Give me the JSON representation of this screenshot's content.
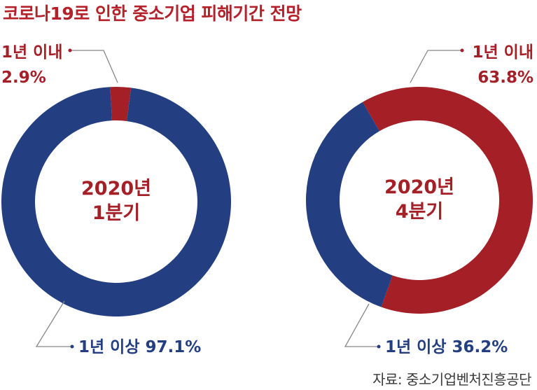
{
  "title": "코로나19로 인한 중소기업 피해기간 전망",
  "source": "자료: 중소기업벤처진흥공단",
  "colors": {
    "under_1yr": "#a51f27",
    "over_1yr": "#233f82",
    "leader": "#888888"
  },
  "chart_data": [
    {
      "type": "pie",
      "center_label": [
        "2020년",
        "1분기"
      ],
      "slices": [
        {
          "label": "1년 이내",
          "value": 2.9,
          "value_label": "2.9%",
          "color": "#a51f27"
        },
        {
          "label": "1년 이상",
          "value": 97.1,
          "value_label": "97.1%",
          "color": "#233f82"
        }
      ]
    },
    {
      "type": "pie",
      "center_label": [
        "2020년",
        "4분기"
      ],
      "slices": [
        {
          "label": "1년 이내",
          "value": 63.8,
          "value_label": "63.8%",
          "color": "#a51f27"
        },
        {
          "label": "1년 이상",
          "value": 36.2,
          "value_label": "36.2%",
          "color": "#233f82"
        }
      ]
    }
  ]
}
